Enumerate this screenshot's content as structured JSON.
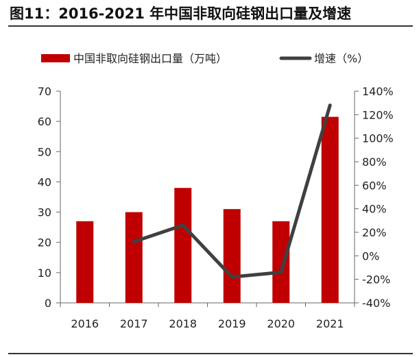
{
  "figure": {
    "title": "图11：2016-2021 年中国非取向硅钢出口量及增速"
  },
  "chart_data": {
    "type": "bar",
    "categories": [
      "2016",
      "2017",
      "2018",
      "2019",
      "2020",
      "2021"
    ],
    "series": [
      {
        "name": "中国非取向硅钢出口量（万吨）",
        "type": "bar",
        "axis": "left",
        "color": "#C00000",
        "values": [
          27,
          30,
          38,
          31,
          27,
          61.5
        ]
      },
      {
        "name": "增速（%）",
        "type": "line",
        "axis": "right",
        "color": "#404040",
        "values": [
          null,
          12,
          26,
          -18,
          -14,
          128
        ]
      }
    ],
    "yleft": {
      "min": 0,
      "max": 70,
      "ticks": [
        "0",
        "10",
        "20",
        "30",
        "40",
        "50",
        "60",
        "70"
      ]
    },
    "yright": {
      "min": -40,
      "max": 140,
      "ticks": [
        "-40%",
        "-20%",
        "0%",
        "20%",
        "40%",
        "60%",
        "80%",
        "100%",
        "120%",
        "140%"
      ]
    },
    "grid": false,
    "legend": "top"
  }
}
